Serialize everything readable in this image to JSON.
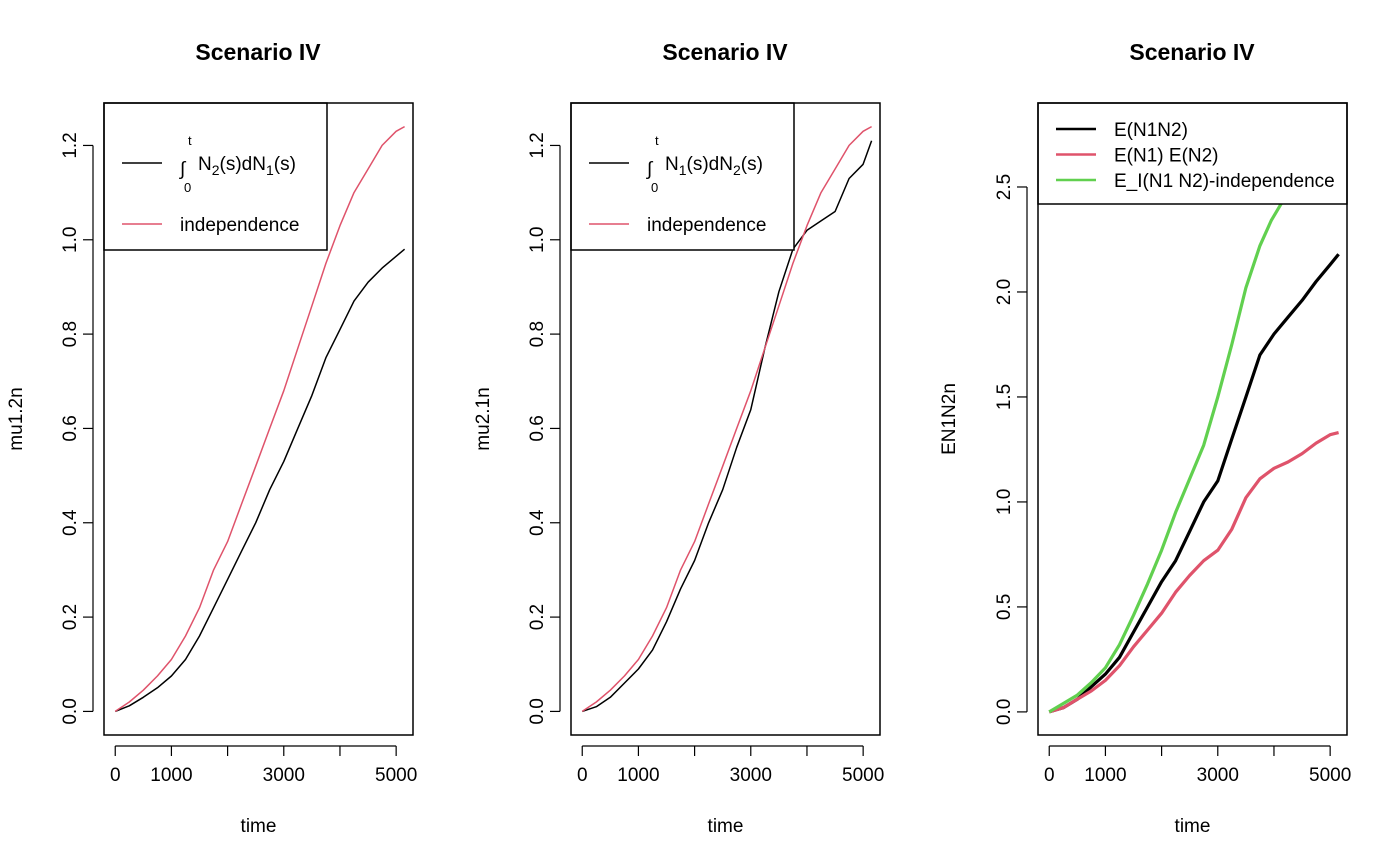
{
  "chart_data": [
    {
      "type": "line",
      "title": "Scenario IV",
      "xlabel": "time",
      "ylabel": "mu1.2n",
      "xlim": [
        -200,
        5300
      ],
      "ylim": [
        -0.05,
        1.29
      ],
      "xticks": [
        0,
        1000,
        2000,
        3000,
        4000,
        5000
      ],
      "xtick_labels": [
        "0",
        "1000",
        "",
        "3000",
        "",
        "5000"
      ],
      "yticks": [
        0.0,
        0.2,
        0.4,
        0.6,
        0.8,
        1.0,
        1.2
      ],
      "ytick_labels": [
        "0.0",
        "0.2",
        "0.4",
        "0.6",
        "0.8",
        "1.0",
        "1.2"
      ],
      "legend": {
        "position": "top-left",
        "entries": [
          {
            "label_prefix": "∫",
            "label_lower": "0",
            "label_upper": "t",
            "label_parts": [
              "N",
              "2",
              "(s)dN",
              "1",
              "(s)"
            ],
            "color": "#000000"
          },
          {
            "label": "independence",
            "color": "#DF536B"
          }
        ]
      },
      "series": [
        {
          "color": "#000000",
          "width": 1.5,
          "x": [
            0,
            250,
            500,
            750,
            1000,
            1250,
            1500,
            1750,
            2000,
            2250,
            2500,
            2750,
            3000,
            3250,
            3500,
            3750,
            4000,
            4250,
            4500,
            4750,
            5000,
            5150
          ],
          "y": [
            0.0,
            0.012,
            0.03,
            0.05,
            0.075,
            0.11,
            0.16,
            0.22,
            0.28,
            0.34,
            0.4,
            0.47,
            0.53,
            0.6,
            0.67,
            0.75,
            0.81,
            0.87,
            0.91,
            0.94,
            0.965,
            0.98
          ]
        },
        {
          "color": "#DF536B",
          "width": 1.5,
          "x": [
            0,
            250,
            500,
            750,
            1000,
            1250,
            1500,
            1750,
            2000,
            2250,
            2500,
            2750,
            3000,
            3250,
            3500,
            3750,
            4000,
            4250,
            4500,
            4750,
            5000,
            5150
          ],
          "y": [
            0.0,
            0.02,
            0.045,
            0.075,
            0.11,
            0.16,
            0.22,
            0.3,
            0.36,
            0.44,
            0.52,
            0.6,
            0.68,
            0.77,
            0.86,
            0.95,
            1.03,
            1.1,
            1.15,
            1.2,
            1.23,
            1.24
          ]
        }
      ]
    },
    {
      "type": "line",
      "title": "Scenario IV",
      "xlabel": "time",
      "ylabel": "mu2.1n",
      "xlim": [
        -200,
        5300
      ],
      "ylim": [
        -0.05,
        1.29
      ],
      "xticks": [
        0,
        1000,
        2000,
        3000,
        4000,
        5000
      ],
      "xtick_labels": [
        "0",
        "1000",
        "",
        "3000",
        "",
        "5000"
      ],
      "yticks": [
        0.0,
        0.2,
        0.4,
        0.6,
        0.8,
        1.0,
        1.2
      ],
      "ytick_labels": [
        "0.0",
        "0.2",
        "0.4",
        "0.6",
        "0.8",
        "1.0",
        "1.2"
      ],
      "legend": {
        "position": "top-left",
        "entries": [
          {
            "label_prefix": "∫",
            "label_lower": "0",
            "label_upper": "t",
            "label_parts": [
              "N",
              "1",
              "(s)dN",
              "2",
              "(s)"
            ],
            "color": "#000000"
          },
          {
            "label": "independence",
            "color": "#DF536B"
          }
        ]
      },
      "series": [
        {
          "color": "#000000",
          "width": 1.5,
          "x": [
            0,
            250,
            500,
            750,
            1000,
            1250,
            1500,
            1750,
            2000,
            2250,
            2500,
            2750,
            3000,
            3250,
            3500,
            3750,
            4000,
            4250,
            4500,
            4750,
            5000,
            5150
          ],
          "y": [
            0.0,
            0.01,
            0.03,
            0.06,
            0.09,
            0.13,
            0.19,
            0.26,
            0.32,
            0.4,
            0.47,
            0.56,
            0.64,
            0.77,
            0.89,
            0.98,
            1.02,
            1.04,
            1.06,
            1.13,
            1.16,
            1.21
          ]
        },
        {
          "color": "#DF536B",
          "width": 1.5,
          "x": [
            0,
            250,
            500,
            750,
            1000,
            1250,
            1500,
            1750,
            2000,
            2250,
            2500,
            2750,
            3000,
            3250,
            3500,
            3750,
            4000,
            4250,
            4500,
            4750,
            5000,
            5150
          ],
          "y": [
            0.0,
            0.02,
            0.045,
            0.075,
            0.11,
            0.16,
            0.22,
            0.3,
            0.36,
            0.44,
            0.52,
            0.6,
            0.68,
            0.77,
            0.86,
            0.95,
            1.03,
            1.1,
            1.15,
            1.2,
            1.23,
            1.24
          ]
        }
      ]
    },
    {
      "type": "line",
      "title": "Scenario IV",
      "xlabel": "time",
      "ylabel": "EN1N2n",
      "xlim": [
        -200,
        5300
      ],
      "ylim": [
        -0.11,
        2.9
      ],
      "xticks": [
        0,
        1000,
        2000,
        3000,
        4000,
        5000
      ],
      "xtick_labels": [
        "0",
        "1000",
        "",
        "3000",
        "",
        "5000"
      ],
      "yticks": [
        0.0,
        0.5,
        1.0,
        1.5,
        2.0,
        2.5
      ],
      "ytick_labels": [
        "0.0",
        "0.5",
        "1.0",
        "1.5",
        "2.0",
        "2.5"
      ],
      "legend": {
        "position": "top-left",
        "entries": [
          {
            "label": "E(N1N2)",
            "color": "#000000"
          },
          {
            "label": "E(N1) E(N2)",
            "color": "#DF536B"
          },
          {
            "label": "E_I(N1 N2)-independence",
            "color": "#61D04F"
          }
        ]
      },
      "series": [
        {
          "color": "#000000",
          "width": 3.2,
          "x": [
            0,
            250,
            500,
            750,
            1000,
            1250,
            1500,
            1750,
            2000,
            2250,
            2500,
            2750,
            3000,
            3250,
            3500,
            3750,
            4000,
            4250,
            4500,
            4750,
            5000,
            5150
          ],
          "y": [
            0.0,
            0.02,
            0.06,
            0.12,
            0.18,
            0.26,
            0.38,
            0.5,
            0.62,
            0.72,
            0.86,
            1.0,
            1.1,
            1.3,
            1.5,
            1.7,
            1.8,
            1.88,
            1.96,
            2.05,
            2.13,
            2.18
          ]
        },
        {
          "color": "#DF536B",
          "width": 3.2,
          "x": [
            0,
            250,
            500,
            750,
            1000,
            1250,
            1500,
            1750,
            2000,
            2250,
            2500,
            2750,
            3000,
            3250,
            3500,
            3750,
            4000,
            4250,
            4500,
            4750,
            5000,
            5150
          ],
          "y": [
            0.0,
            0.02,
            0.06,
            0.1,
            0.15,
            0.22,
            0.31,
            0.39,
            0.47,
            0.57,
            0.65,
            0.72,
            0.77,
            0.87,
            1.02,
            1.11,
            1.16,
            1.19,
            1.23,
            1.28,
            1.32,
            1.33
          ]
        },
        {
          "color": "#61D04F",
          "width": 3.2,
          "x": [
            0,
            250,
            500,
            750,
            1000,
            1250,
            1500,
            1750,
            2000,
            2250,
            2500,
            2750,
            3000,
            3250,
            3500,
            3750,
            3950,
            4150
          ],
          "y": [
            0.0,
            0.04,
            0.08,
            0.14,
            0.21,
            0.32,
            0.46,
            0.61,
            0.77,
            0.95,
            1.11,
            1.27,
            1.5,
            1.75,
            2.02,
            2.22,
            2.34,
            2.43
          ]
        }
      ]
    }
  ]
}
